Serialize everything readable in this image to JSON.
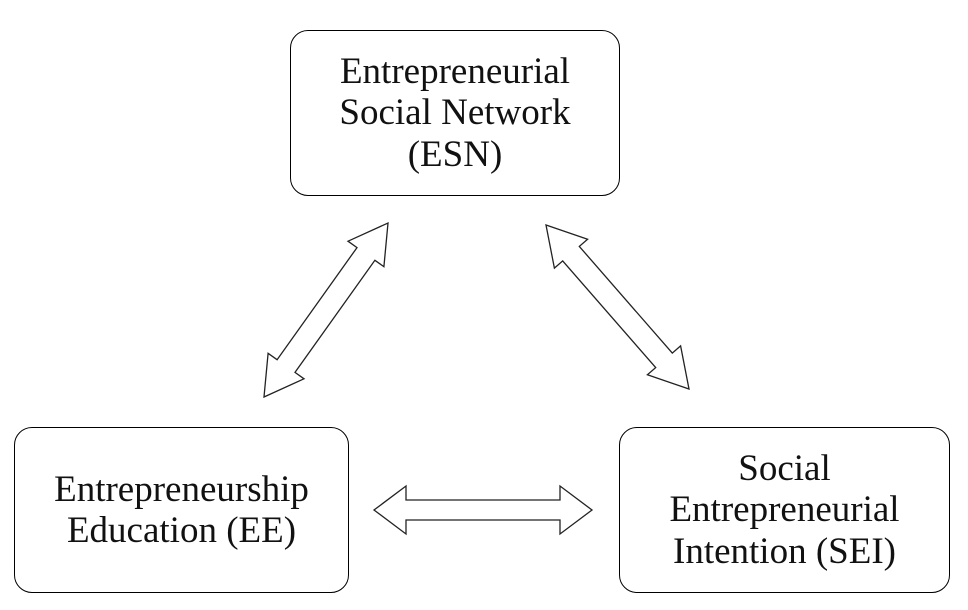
{
  "diagram": {
    "nodes": {
      "esn": {
        "lines": [
          "Entrepreneurial",
          "Social Network",
          "(ESN)"
        ]
      },
      "ee": {
        "lines": [
          "Entrepreneurship",
          "Education (EE)"
        ]
      },
      "sei": {
        "lines": [
          "Social",
          "Entrepreneurial",
          "Intention (SEI)"
        ]
      }
    },
    "edges": [
      {
        "from": "ee",
        "to": "esn",
        "type": "bidirectional"
      },
      {
        "from": "esn",
        "to": "sei",
        "type": "bidirectional"
      },
      {
        "from": "ee",
        "to": "sei",
        "type": "bidirectional"
      }
    ]
  }
}
